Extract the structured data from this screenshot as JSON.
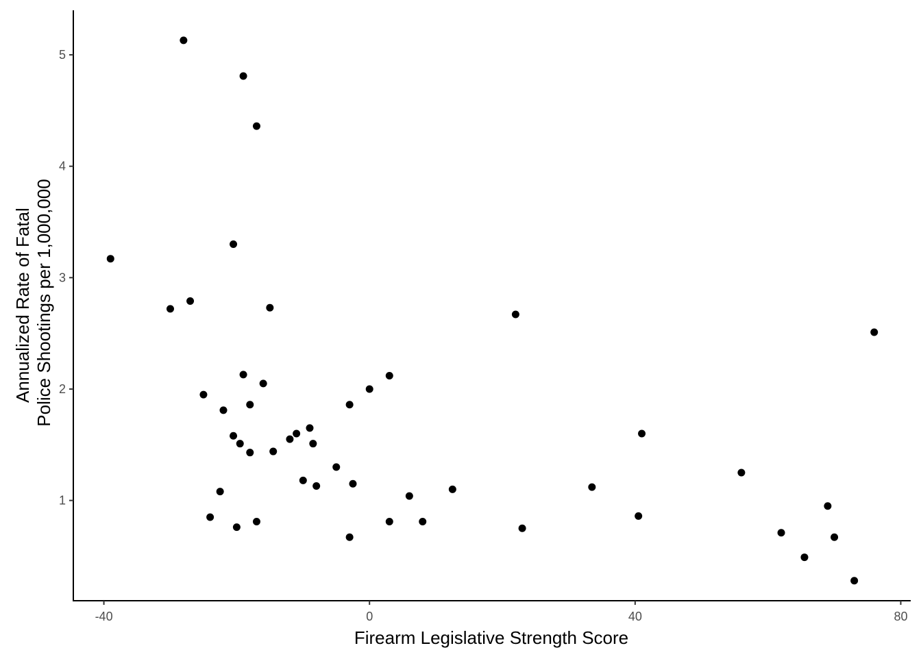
{
  "chart_data": {
    "type": "scatter",
    "title": "",
    "xlabel": "Firearm Legislative Strength Score",
    "ylabel_lines": [
      "Annualized Rate of Fatal",
      "Police Shootings per 1,000,000"
    ],
    "xlim": [
      -44.6,
      81.5
    ],
    "ylim": [
      0.1,
      5.4
    ],
    "xticks": [
      -40,
      0,
      40,
      80
    ],
    "yticks": [
      1,
      2,
      3,
      4,
      5
    ],
    "xtick_labels": [
      "-40",
      "0",
      "40",
      "80"
    ],
    "ytick_labels": [
      "1",
      "2",
      "3",
      "4",
      "5"
    ],
    "grid": false,
    "legend": "none",
    "point_color": "#000000",
    "axis_color": "#000000",
    "points": [
      {
        "x": -39.0,
        "y": 3.17
      },
      {
        "x": -30.0,
        "y": 2.72
      },
      {
        "x": -28.0,
        "y": 5.13
      },
      {
        "x": -27.0,
        "y": 2.79
      },
      {
        "x": -25.0,
        "y": 1.95
      },
      {
        "x": -24.0,
        "y": 0.85
      },
      {
        "x": -22.5,
        "y": 1.08
      },
      {
        "x": -22.0,
        "y": 1.81
      },
      {
        "x": -20.5,
        "y": 1.58
      },
      {
        "x": -20.5,
        "y": 3.3
      },
      {
        "x": -20.0,
        "y": 0.76
      },
      {
        "x": -19.5,
        "y": 1.51
      },
      {
        "x": -19.0,
        "y": 2.13
      },
      {
        "x": -19.0,
        "y": 4.81
      },
      {
        "x": -18.0,
        "y": 1.86
      },
      {
        "x": -18.0,
        "y": 1.43
      },
      {
        "x": -17.0,
        "y": 4.36
      },
      {
        "x": -17.0,
        "y": 0.81
      },
      {
        "x": -16.0,
        "y": 2.05
      },
      {
        "x": -15.0,
        "y": 2.73
      },
      {
        "x": -14.5,
        "y": 1.44
      },
      {
        "x": -12.0,
        "y": 1.55
      },
      {
        "x": -11.0,
        "y": 1.6
      },
      {
        "x": -10.0,
        "y": 1.18
      },
      {
        "x": -9.0,
        "y": 1.65
      },
      {
        "x": -8.5,
        "y": 1.51
      },
      {
        "x": -8.0,
        "y": 1.13
      },
      {
        "x": -5.0,
        "y": 1.3
      },
      {
        "x": -3.0,
        "y": 1.86
      },
      {
        "x": -3.0,
        "y": 0.67
      },
      {
        "x": -2.5,
        "y": 1.15
      },
      {
        "x": 0.0,
        "y": 2.0
      },
      {
        "x": 3.0,
        "y": 2.12
      },
      {
        "x": 3.0,
        "y": 0.81
      },
      {
        "x": 6.0,
        "y": 1.04
      },
      {
        "x": 8.0,
        "y": 0.81
      },
      {
        "x": 12.5,
        "y": 1.1
      },
      {
        "x": 22.0,
        "y": 2.67
      },
      {
        "x": 23.0,
        "y": 0.75
      },
      {
        "x": 33.5,
        "y": 1.12
      },
      {
        "x": 40.5,
        "y": 0.86
      },
      {
        "x": 41.0,
        "y": 1.6
      },
      {
        "x": 56.0,
        "y": 1.25
      },
      {
        "x": 62.0,
        "y": 0.71
      },
      {
        "x": 65.5,
        "y": 0.49
      },
      {
        "x": 69.0,
        "y": 0.95
      },
      {
        "x": 70.0,
        "y": 0.67
      },
      {
        "x": 73.0,
        "y": 0.28
      },
      {
        "x": 76.0,
        "y": 2.51
      }
    ]
  }
}
